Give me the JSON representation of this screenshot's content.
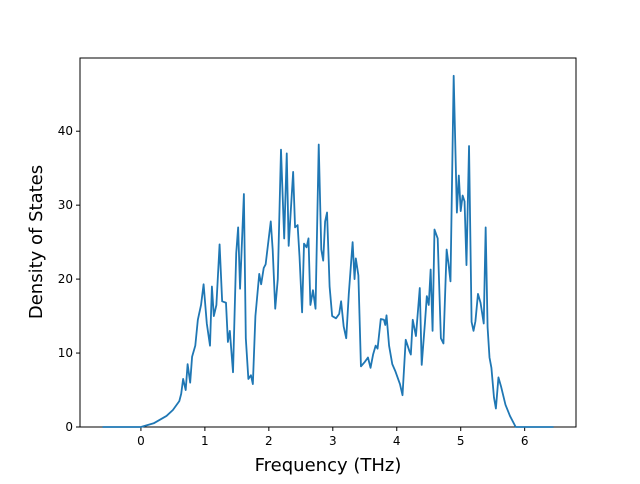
{
  "chart_data": {
    "type": "line",
    "xlabel": "Frequency (THz)",
    "ylabel": "Density of States",
    "xlim": [
      -0.9525,
      6.8025
    ],
    "ylim": [
      0,
      49.9
    ],
    "xticks": [
      0,
      1,
      2,
      3,
      4,
      5,
      6
    ],
    "yticks": [
      0,
      10,
      20,
      30,
      40
    ],
    "grid": false,
    "series": [
      {
        "color": "#1f77b4",
        "x": [
          -0.6,
          0,
          0.2,
          0.4,
          0.5,
          0.6,
          0.63,
          0.66,
          0.7,
          0.73,
          0.77,
          0.8,
          0.85,
          0.89,
          0.94,
          0.98,
          1.03,
          1.08,
          1.11,
          1.14,
          1.18,
          1.23,
          1.27,
          1.33,
          1.36,
          1.39,
          1.44,
          1.49,
          1.52,
          1.55,
          1.61,
          1.64,
          1.68,
          1.72,
          1.75,
          1.79,
          1.85,
          1.88,
          1.92,
          1.95,
          2.03,
          2.06,
          2.1,
          2.14,
          2.19,
          2.24,
          2.28,
          2.31,
          2.38,
          2.41,
          2.45,
          2.48,
          2.52,
          2.55,
          2.59,
          2.62,
          2.65,
          2.69,
          2.73,
          2.78,
          2.82,
          2.85,
          2.88,
          2.91,
          2.95,
          2.99,
          3.05,
          3.1,
          3.13,
          3.17,
          3.21,
          3.25,
          3.31,
          3.34,
          3.36,
          3.4,
          3.44,
          3.5,
          3.55,
          3.59,
          3.63,
          3.67,
          3.7,
          3.75,
          3.8,
          3.82,
          3.84,
          3.88,
          3.93,
          3.98,
          4.05,
          4.09,
          4.14,
          4.2,
          4.22,
          4.25,
          4.3,
          4.36,
          4.39,
          4.44,
          4.47,
          4.5,
          4.53,
          4.56,
          4.59,
          4.64,
          4.69,
          4.73,
          4.78,
          4.81,
          4.84,
          4.89,
          4.94,
          4.97,
          5.0,
          5.03,
          5.06,
          5.09,
          5.13,
          5.17,
          5.2,
          5.23,
          5.27,
          5.31,
          5.36,
          5.39,
          5.42,
          5.45,
          5.48,
          5.52,
          5.55,
          5.59,
          5.63,
          5.7,
          5.77,
          5.86,
          6.45
        ],
        "values": [
          0,
          0,
          0.5,
          1.5,
          2.3,
          3.5,
          4.5,
          6.5,
          5,
          8.5,
          6,
          9.5,
          11,
          14.5,
          16.5,
          19.3,
          14,
          11,
          19,
          15,
          16.5,
          24.7,
          17,
          16.8,
          11.5,
          13,
          7.4,
          23.5,
          27,
          18.7,
          31.5,
          12,
          6.5,
          7,
          5.8,
          15,
          20.7,
          19.3,
          21.5,
          22,
          27.8,
          24,
          16,
          20,
          37.5,
          25.5,
          37,
          24.5,
          34.5,
          27,
          27.3,
          23,
          15.5,
          24.8,
          24.3,
          25.5,
          16.5,
          18.5,
          16,
          38.2,
          24,
          22.5,
          27.8,
          29,
          19,
          15,
          14.7,
          15.3,
          17,
          13.6,
          12,
          18,
          25,
          20,
          22.8,
          20.5,
          8.2,
          8.8,
          9.4,
          8,
          9.8,
          11,
          10.6,
          14.6,
          14.5,
          13.8,
          15.1,
          11,
          8.5,
          7.5,
          5.8,
          4.3,
          11.8,
          10.2,
          9.8,
          14.5,
          12.3,
          18.8,
          8.4,
          14,
          17.7,
          16.5,
          21.3,
          13,
          26.7,
          25.5,
          12,
          11.3,
          24,
          22,
          19.7,
          47.5,
          29,
          34,
          29.2,
          31.3,
          30.5,
          21.9,
          38,
          14.2,
          13,
          14.3,
          18,
          16.8,
          14,
          27,
          13.5,
          9.4,
          8,
          4,
          2.5,
          6.7,
          5.5,
          3,
          1.5,
          0,
          0
        ]
      }
    ]
  }
}
